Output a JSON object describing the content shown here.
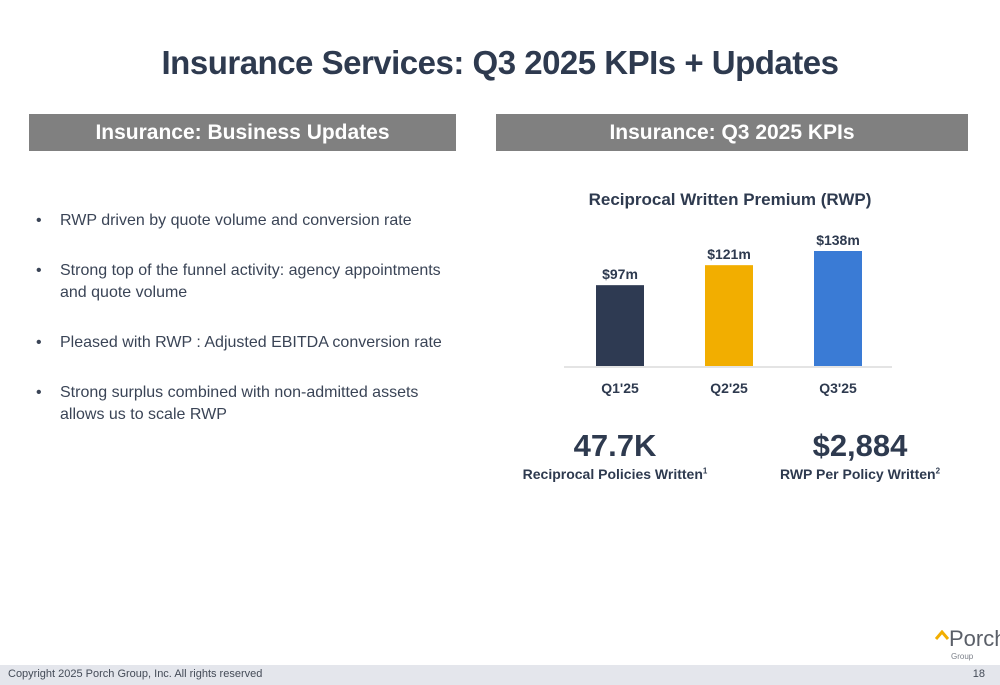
{
  "title": "Insurance Services: Q3 2025 KPIs + Updates",
  "left_header": "Insurance: Business Updates",
  "right_header": "Insurance: Q3 2025 KPIs",
  "bullets": [
    "RWP driven by quote volume and conversion rate",
    "Strong top of the funnel activity: agency appointments and quote volume",
    "Pleased with RWP : Adjusted EBITDA conversion rate",
    "Strong surplus combined with non-admitted assets allows us to scale RWP"
  ],
  "bullet_symbol": "•",
  "kpis": [
    {
      "value": "47.7K",
      "label": "Reciprocal Policies Written",
      "footnote": "1"
    },
    {
      "value": "$2,884",
      "label": "RWP Per Policy Written",
      "footnote": "2"
    }
  ],
  "logo": {
    "name": "Porch",
    "sub": "Group"
  },
  "footer": {
    "copyright": "Copyright 2025 Porch Group, Inc. All rights reserved",
    "page_number": "18"
  },
  "chart_data": {
    "type": "bar",
    "title": "Reciprocal Written Premium (RWP)",
    "categories": [
      "Q1'25",
      "Q2'25",
      "Q3'25"
    ],
    "values": [
      97,
      121,
      138
    ],
    "labels": [
      "$97m",
      "$121m",
      "$138m"
    ],
    "colors": [
      "#2e3a52",
      "#f2ae00",
      "#3a7bd5"
    ],
    "xlabel": "",
    "ylabel": "",
    "ylim": [
      0,
      138
    ],
    "grid": false
  }
}
